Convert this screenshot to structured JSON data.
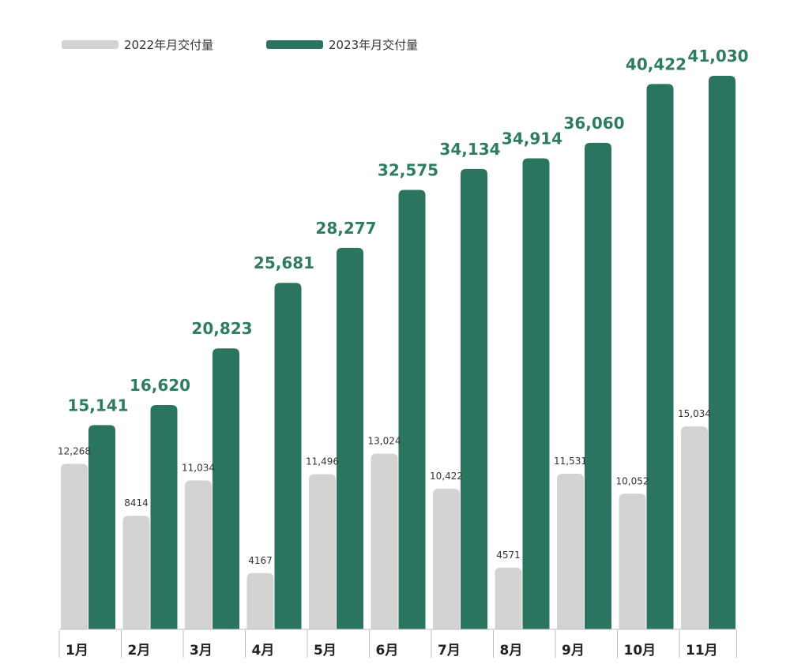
{
  "chart_data": {
    "type": "bar",
    "title": "",
    "xlabel": "",
    "ylabel": "",
    "ylim": [
      0,
      41030
    ],
    "categories": [
      "1月",
      "2月",
      "3月",
      "4月",
      "5月",
      "6月",
      "7月",
      "8月",
      "9月",
      "10月",
      "11月"
    ],
    "series": [
      {
        "name": "2022年月交付量",
        "color": "#d3d3d3",
        "values": [
          12268,
          8414,
          11034,
          4167,
          11496,
          13024,
          10422,
          4571,
          11531,
          10052,
          15034
        ],
        "labels": [
          "12,268",
          "8414",
          "11,034",
          "4167",
          "11,496",
          "13,024",
          "10,422",
          "4571",
          "11,531",
          "10,052",
          "15,034"
        ]
      },
      {
        "name": "2023年月交付量",
        "color": "#2b7560",
        "values": [
          15141,
          16620,
          20823,
          25681,
          28277,
          32575,
          34134,
          34914,
          36060,
          40422,
          41030
        ],
        "labels": [
          "15,141",
          "16,620",
          "20,823",
          "25,681",
          "28,277",
          "32,575",
          "34,134",
          "34,914",
          "36,060",
          "40,422",
          "41,030"
        ]
      }
    ],
    "legend": "top-left",
    "grid": false
  }
}
